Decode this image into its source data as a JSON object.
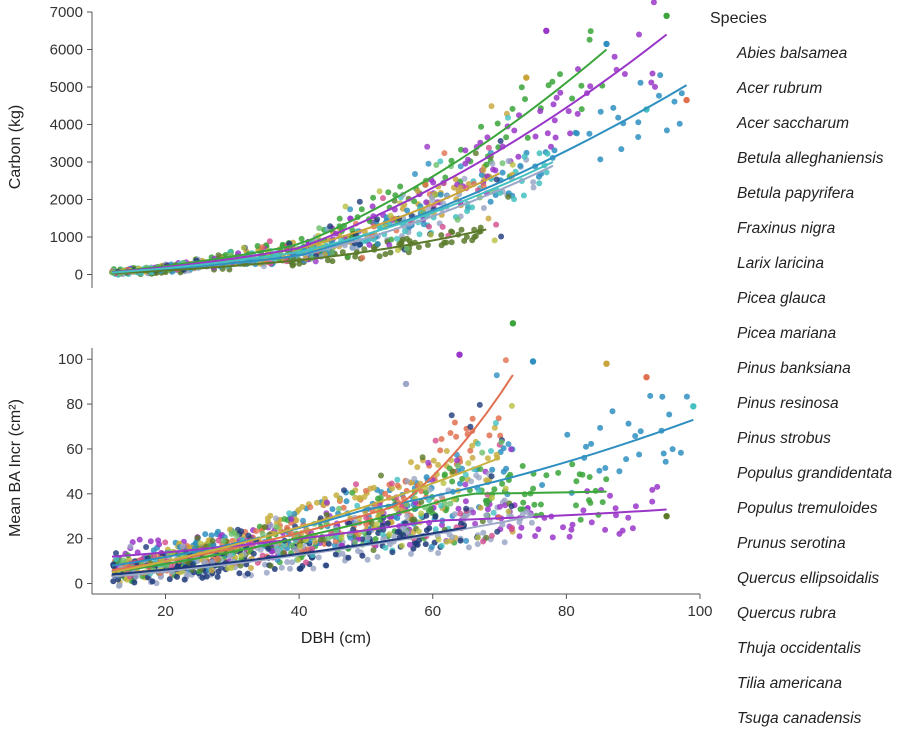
{
  "chart_data": [
    {
      "type": "scatter",
      "panel": "top",
      "ylabel": "Carbon (kg)",
      "xlabel": "",
      "xlim": [
        9,
        100
      ],
      "ylim": [
        -200,
        7000
      ],
      "xticks": [
        20,
        40,
        60,
        80,
        100
      ],
      "yticks": [
        0,
        1000,
        2000,
        3000,
        4000,
        5000,
        6000,
        7000
      ],
      "ytick_labels": [
        "0",
        "1000",
        "2000",
        "3000",
        "4000",
        "5000",
        "6000",
        "7000"
      ],
      "series": [
        {
          "name": "Abies balsamea",
          "color": "#9ba7c6",
          "fit": [
            [
              12,
              40
            ],
            [
              40,
              500
            ],
            [
              78,
              2900
            ]
          ]
        },
        {
          "name": "Acer rubrum",
          "color": "#c8a43a",
          "fit": [
            [
              12,
              60
            ],
            [
              40,
              700
            ],
            [
              70,
              2700
            ]
          ]
        },
        {
          "name": "Acer saccharum",
          "color": "#3aa53a",
          "fit": [
            [
              12,
              70
            ],
            [
              40,
              800
            ],
            [
              86,
              6000
            ]
          ]
        },
        {
          "name": "Betula papyrifera",
          "color": "#9a36c8",
          "fit": [
            [
              12,
              60
            ],
            [
              40,
              700
            ],
            [
              95,
              6400
            ]
          ]
        },
        {
          "name": "Pinus strobus",
          "color": "#2e8fc0",
          "fit": [
            [
              12,
              50
            ],
            [
              40,
              500
            ],
            [
              98,
              5050
            ]
          ]
        },
        {
          "name": "Larix laricina",
          "color": "#5a7a2a",
          "fit": [
            [
              12,
              30
            ],
            [
              40,
              380
            ],
            [
              68,
              1200
            ]
          ]
        },
        {
          "name": "Populus grandidentata",
          "color": "#44c0c0",
          "fit": [
            [
              12,
              50
            ],
            [
              40,
              600
            ],
            [
              78,
              3000
            ]
          ]
        }
      ],
      "outliers": [
        [
          95,
          6900
        ],
        [
          77,
          6500
        ],
        [
          86,
          6150
        ],
        [
          74,
          5250
        ],
        [
          98,
          4650
        ],
        [
          92,
          4400
        ]
      ]
    },
    {
      "type": "scatter",
      "panel": "bottom",
      "ylabel": "Mean BA Incr (cm²)",
      "xlabel": "DBH (cm)",
      "xlim": [
        9,
        100
      ],
      "ylim": [
        -2,
        105
      ],
      "xticks": [
        20,
        40,
        60,
        80,
        100
      ],
      "xtick_labels": [
        "20",
        "40",
        "60",
        "80",
        "100"
      ],
      "yticks": [
        0,
        20,
        40,
        60,
        80,
        100
      ],
      "ytick_labels": [
        "0",
        "20",
        "40",
        "60",
        "80",
        "100"
      ],
      "series": [
        {
          "name": "Pinus strobus",
          "color": "#2e8fc0",
          "fit": [
            [
              12,
              8
            ],
            [
              50,
              33
            ],
            [
              99,
              73
            ]
          ]
        },
        {
          "name": "Prunus serotina",
          "color": "#e07050",
          "fit": [
            [
              12,
              6
            ],
            [
              55,
              35
            ],
            [
              72,
              93
            ]
          ]
        },
        {
          "name": "Betula papyrifera",
          "color": "#9a36c8",
          "fit": [
            [
              12,
              12
            ],
            [
              60,
              28
            ],
            [
              95,
              33
            ]
          ]
        },
        {
          "name": "Acer saccharum",
          "color": "#3aa53a",
          "fit": [
            [
              12,
              5
            ],
            [
              65,
              40
            ],
            [
              86,
              41
            ]
          ]
        },
        {
          "name": "Populus tremuloides",
          "color": "#c8b040",
          "fit": [
            [
              12,
              5
            ],
            [
              70,
              56
            ]
          ]
        },
        {
          "name": "Abies balsamea",
          "color": "#9ba7c6",
          "fit": [
            [
              12,
              3
            ],
            [
              75,
              30
            ]
          ]
        },
        {
          "name": "Tsuga canadensis",
          "color": "#1e3a7a",
          "fit": [
            [
              12,
              4
            ],
            [
              65,
              25
            ]
          ]
        }
      ],
      "outliers": [
        [
          72,
          116
        ],
        [
          64,
          102
        ],
        [
          75,
          99
        ],
        [
          86,
          98
        ],
        [
          92,
          92
        ],
        [
          99,
          79
        ],
        [
          95,
          30
        ],
        [
          56,
          89
        ]
      ]
    }
  ],
  "legend": {
    "title": "Species",
    "items": [
      "Abies balsamea",
      "Acer rubrum",
      "Acer saccharum",
      "Betula alleghaniensis",
      "Betula papyrifera",
      "Fraxinus nigra",
      "Larix laricina",
      "Picea glauca",
      "Picea mariana",
      "Pinus banksiana",
      "Pinus resinosa",
      "Pinus strobus",
      "Populus grandidentata",
      "Populus tremuloides",
      "Prunus serotina",
      "Quercus ellipsoidalis",
      "Quercus rubra",
      "Thuja occidentalis",
      "Tilia americana",
      "Tsuga canadensis"
    ]
  },
  "palette": [
    "#3aa53a",
    "#9a36c8",
    "#2e8fc0",
    "#c8a43a",
    "#e07050",
    "#44c0c0",
    "#5a7a2a",
    "#9ba7c6",
    "#d24b8c",
    "#1e3a7a",
    "#b8c040",
    "#6bbf6b"
  ]
}
